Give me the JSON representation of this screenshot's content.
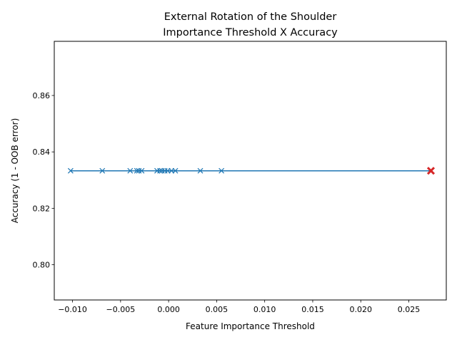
{
  "chart_data": {
    "type": "line",
    "title": [
      "External Rotation of the Shoulder",
      "Importance Threshold X Accuracy"
    ],
    "xlabel": "Feature Importance Threshold",
    "ylabel": "Accuracy (1 - OOB error)",
    "xlim": [
      -0.0119,
      0.0289
    ],
    "ylim": [
      0.7875,
      0.8792
    ],
    "xticks": [
      -0.01,
      -0.005,
      0.0,
      0.005,
      0.01,
      0.015,
      0.02,
      0.025
    ],
    "xtick_labels": [
      "−0.010",
      "−0.005",
      "0.000",
      "0.005",
      "0.010",
      "0.015",
      "0.020",
      "0.025"
    ],
    "yticks": [
      0.8,
      0.82,
      0.84,
      0.86
    ],
    "ytick_labels": [
      "0.80",
      "0.82",
      "0.84",
      "0.86"
    ],
    "grid": false,
    "series": [
      {
        "marker": "x",
        "color": "#1f77b4",
        "x": [
          -0.0102,
          -0.0069,
          -0.004,
          -0.0033,
          -0.0031,
          -0.0028,
          -0.0012,
          -0.0009,
          -0.0007,
          -0.0004,
          -0.0001,
          0.0003,
          0.0007,
          0.0033,
          0.0055,
          0.0273
        ],
        "y": [
          0.8333,
          0.8333,
          0.8333,
          0.8333,
          0.8333,
          0.8333,
          0.8333,
          0.8333,
          0.8333,
          0.8333,
          0.8333,
          0.8333,
          0.8333,
          0.8333,
          0.8333,
          0.8333
        ]
      }
    ],
    "highlight": {
      "x": 0.0273,
      "y": 0.8333,
      "marker": "x",
      "color": "#d62728"
    }
  }
}
